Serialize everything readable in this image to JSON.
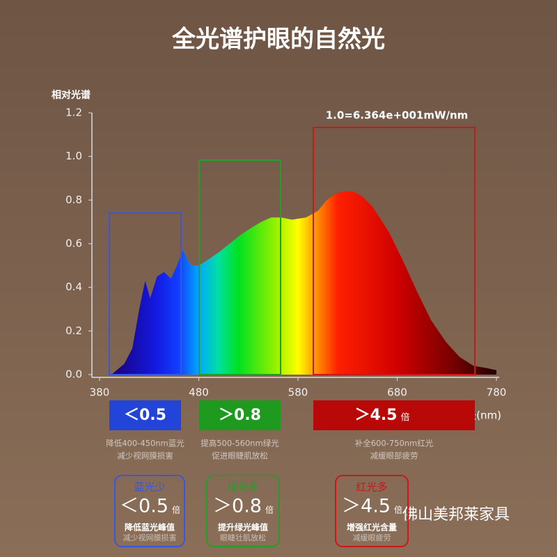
{
  "chart_data": {
    "type": "area",
    "title": "全光谱护眼的自然光",
    "y_label": "相对光谱",
    "x_label": "波长(nm)",
    "annotation": "1.0=6.364e+001mW/nm",
    "x": [
      392,
      405,
      413,
      420,
      426,
      431,
      438,
      445,
      452,
      458,
      464,
      469,
      473,
      480,
      487,
      500,
      511,
      522,
      532,
      543,
      553,
      563,
      574,
      588,
      600,
      609,
      618,
      627,
      635,
      644,
      655,
      665,
      672,
      686,
      700,
      714,
      729,
      743,
      757,
      770,
      780
    ],
    "values": [
      0,
      0.05,
      0.12,
      0.3,
      0.43,
      0.35,
      0.45,
      0.47,
      0.44,
      0.5,
      0.57,
      0.52,
      0.5,
      0.5,
      0.52,
      0.56,
      0.6,
      0.64,
      0.67,
      0.7,
      0.72,
      0.72,
      0.71,
      0.72,
      0.75,
      0.8,
      0.83,
      0.84,
      0.84,
      0.82,
      0.77,
      0.7,
      0.65,
      0.52,
      0.38,
      0.25,
      0.15,
      0.08,
      0.04,
      0.03,
      0.02
    ],
    "xlim": [
      380,
      780
    ],
    "xticks": [
      380,
      480,
      580,
      680,
      780
    ],
    "ylim": [
      0,
      1.2
    ],
    "yticks": [
      {
        "value": 0,
        "label": "0.0"
      },
      0.2,
      0.4,
      0.6,
      0.8,
      {
        "value": 1,
        "label": "1.0"
      },
      1.2
    ],
    "bands": [
      {
        "badge": "＜0.5",
        "note": [
          "降低400-450nm蓝光",
          "减少视网膜损害"
        ]
      },
      {
        "badge": "＞0.8",
        "note": [
          "提高500-560nm绿光",
          "促进眼睫肌放松"
        ]
      },
      {
        "badge": "＞4.5",
        "unit": "倍",
        "note": [
          "补全600-750nm红光",
          "减缓眼部疲劳"
        ]
      }
    ],
    "cards": [
      {
        "tag": "蓝光少",
        "value": "＜0.5",
        "unit": "倍",
        "line1": "降低蓝光峰值",
        "line2": "减少视网膜损害"
      },
      {
        "tag": "绿光多",
        "value": "＞0.8",
        "unit": "倍",
        "line1": "提升绿光峰值",
        "line2": "眼睫壮肌放松"
      },
      {
        "tag": "红光多",
        "value": "＞4.5",
        "unit": "倍",
        "line1": "增强红光含量",
        "line2": "减缓眼疲劳"
      }
    ]
  },
  "watermark": "佛山美邦莱家具"
}
